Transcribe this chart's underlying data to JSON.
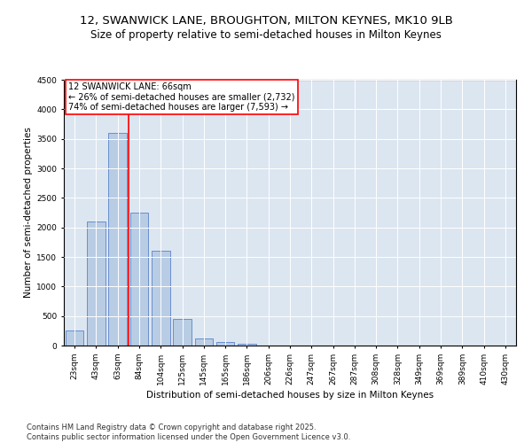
{
  "title": "12, SWANWICK LANE, BROUGHTON, MILTON KEYNES, MK10 9LB",
  "subtitle": "Size of property relative to semi-detached houses in Milton Keynes",
  "xlabel": "Distribution of semi-detached houses by size in Milton Keynes",
  "ylabel": "Number of semi-detached properties",
  "categories": [
    "23sqm",
    "43sqm",
    "63sqm",
    "84sqm",
    "104sqm",
    "125sqm",
    "145sqm",
    "165sqm",
    "186sqm",
    "206sqm",
    "226sqm",
    "247sqm",
    "267sqm",
    "287sqm",
    "308sqm",
    "328sqm",
    "349sqm",
    "369sqm",
    "389sqm",
    "410sqm",
    "430sqm"
  ],
  "values": [
    250,
    2100,
    3600,
    2250,
    1600,
    450,
    120,
    60,
    35,
    0,
    0,
    0,
    0,
    0,
    0,
    0,
    0,
    0,
    0,
    0,
    0
  ],
  "bar_color": "#b8cce4",
  "bar_edge_color": "#4472c4",
  "property_line_color": "#ff0000",
  "property_line_index": 2.5,
  "ylim": [
    0,
    4500
  ],
  "yticks": [
    0,
    500,
    1000,
    1500,
    2000,
    2500,
    3000,
    3500,
    4000,
    4500
  ],
  "annotation_title": "12 SWANWICK LANE: 66sqm",
  "annotation_line1": "← 26% of semi-detached houses are smaller (2,732)",
  "annotation_line2": "74% of semi-detached houses are larger (7,593) →",
  "annotation_box_color": "#ff0000",
  "plot_bg_color": "#dce6f1",
  "footer_line1": "Contains HM Land Registry data © Crown copyright and database right 2025.",
  "footer_line2": "Contains public sector information licensed under the Open Government Licence v3.0.",
  "title_fontsize": 9.5,
  "subtitle_fontsize": 8.5,
  "axis_label_fontsize": 7.5,
  "tick_fontsize": 6.5,
  "annotation_fontsize": 7,
  "footer_fontsize": 6
}
